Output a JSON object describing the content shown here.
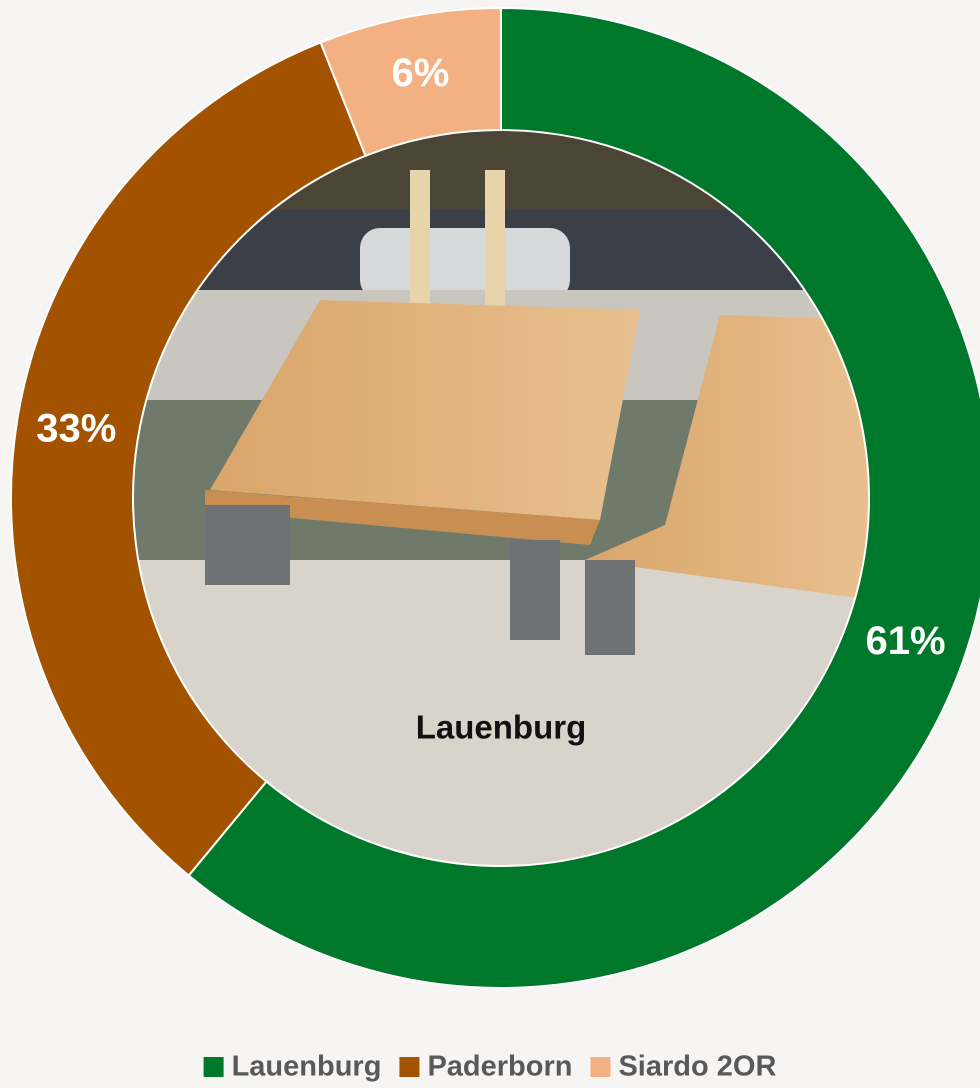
{
  "chart_data": {
    "type": "donut",
    "center_label": "Lauenburg",
    "categories": [
      "Lauenburg",
      "Paderborn",
      "Siardo 2OR"
    ],
    "values": [
      61,
      33,
      6
    ],
    "value_labels": [
      "61%",
      "33%",
      "6%"
    ],
    "colors": [
      "#00782b",
      "#a35200",
      "#f2b083"
    ],
    "legend": "bottom"
  }
}
